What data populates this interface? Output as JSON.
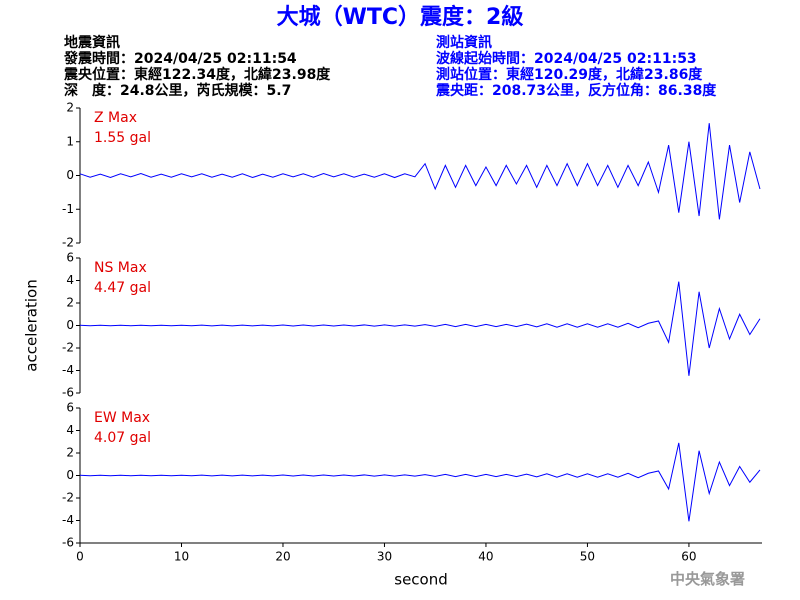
{
  "header": {
    "title": "大城（WTC）震度：2級",
    "left": [
      "地震資訊",
      "發震時間：2024/04/25 02:11:54",
      "震央位置：東經122.34度，北緯23.98度",
      "深　度：24.8公里，芮氏規模：5.7"
    ],
    "right": [
      "測站資訊",
      "波線起始時間：2024/04/25 02:11:53",
      "測站位置：東經120.29度，北緯23.86度",
      "震央距：208.73公里，反方位角：86.38度"
    ]
  },
  "footer": "中央氣象署",
  "chart_data": [
    {
      "type": "line",
      "annotation": [
        "Z Max",
        "1.55 gal"
      ],
      "color": "#0000ff",
      "x": [
        0,
        1,
        2,
        3,
        4,
        5,
        6,
        7,
        8,
        9,
        10,
        11,
        12,
        13,
        14,
        15,
        16,
        17,
        18,
        19,
        20,
        21,
        22,
        23,
        24,
        25,
        26,
        27,
        28,
        29,
        30,
        31,
        32,
        33,
        34,
        35,
        36,
        37,
        38,
        39,
        40,
        41,
        42,
        43,
        44,
        45,
        46,
        47,
        48,
        49,
        50,
        51,
        52,
        53,
        54,
        55,
        56,
        57,
        58,
        59,
        60,
        61,
        62,
        63,
        64,
        65,
        66,
        67
      ],
      "values": [
        0.05,
        -0.05,
        0.04,
        -0.06,
        0.05,
        -0.04,
        0.06,
        -0.05,
        0.04,
        -0.05,
        0.05,
        -0.04,
        0.05,
        -0.05,
        0.04,
        -0.05,
        0.05,
        -0.06,
        0.04,
        -0.05,
        0.05,
        -0.04,
        0.05,
        -0.05,
        0.06,
        -0.04,
        0.05,
        -0.05,
        0.04,
        -0.05,
        0.05,
        -0.06,
        0.05,
        -0.04,
        0.35,
        -0.4,
        0.3,
        -0.35,
        0.3,
        -0.3,
        0.25,
        -0.3,
        0.3,
        -0.25,
        0.3,
        -0.35,
        0.3,
        -0.3,
        0.35,
        -0.3,
        0.35,
        -0.3,
        0.3,
        -0.35,
        0.3,
        -0.3,
        0.4,
        -0.5,
        0.9,
        -1.1,
        1.0,
        -1.2,
        1.55,
        -1.3,
        0.9,
        -0.8,
        0.7,
        -0.4
      ],
      "xlim": [
        0,
        67.2
      ],
      "ylim": [
        -2,
        2
      ],
      "yticks": [
        -2,
        -1,
        0,
        1,
        2
      ]
    },
    {
      "type": "line",
      "annotation": [
        "NS Max",
        "4.47 gal"
      ],
      "color": "#0000ff",
      "ylabel": "acceleration",
      "x": [
        0,
        1,
        2,
        3,
        4,
        5,
        6,
        7,
        8,
        9,
        10,
        11,
        12,
        13,
        14,
        15,
        16,
        17,
        18,
        19,
        20,
        21,
        22,
        23,
        24,
        25,
        26,
        27,
        28,
        29,
        30,
        31,
        32,
        33,
        34,
        35,
        36,
        37,
        38,
        39,
        40,
        41,
        42,
        43,
        44,
        45,
        46,
        47,
        48,
        49,
        50,
        51,
        52,
        53,
        54,
        55,
        56,
        57,
        58,
        59,
        60,
        61,
        62,
        63,
        64,
        65,
        66,
        67
      ],
      "values": [
        0.02,
        -0.02,
        0.02,
        -0.02,
        0.02,
        -0.02,
        0.02,
        -0.02,
        0.02,
        -0.02,
        0.02,
        -0.02,
        0.03,
        -0.03,
        0.03,
        -0.03,
        0.03,
        -0.03,
        0.03,
        -0.03,
        0.04,
        -0.04,
        0.04,
        -0.04,
        0.04,
        -0.04,
        0.04,
        -0.04,
        0.05,
        -0.05,
        0.05,
        -0.05,
        0.05,
        -0.05,
        0.08,
        -0.08,
        0.1,
        -0.1,
        0.1,
        -0.1,
        0.1,
        -0.1,
        0.1,
        -0.1,
        0.12,
        -0.12,
        0.15,
        -0.15,
        0.15,
        -0.15,
        0.15,
        -0.15,
        0.15,
        -0.15,
        0.2,
        -0.2,
        0.2,
        0.4,
        -1.5,
        3.9,
        -4.47,
        3.0,
        -2.0,
        1.5,
        -1.2,
        1.0,
        -0.8,
        0.6
      ],
      "xlim": [
        0,
        67.2
      ],
      "ylim": [
        -6,
        6
      ],
      "yticks": [
        -6,
        -4,
        -2,
        0,
        2,
        4,
        6
      ]
    },
    {
      "type": "line",
      "annotation": [
        "EW Max",
        "4.07 gal"
      ],
      "color": "#0000ff",
      "xlabel": "second",
      "x": [
        0,
        1,
        2,
        3,
        4,
        5,
        6,
        7,
        8,
        9,
        10,
        11,
        12,
        13,
        14,
        15,
        16,
        17,
        18,
        19,
        20,
        21,
        22,
        23,
        24,
        25,
        26,
        27,
        28,
        29,
        30,
        31,
        32,
        33,
        34,
        35,
        36,
        37,
        38,
        39,
        40,
        41,
        42,
        43,
        44,
        45,
        46,
        47,
        48,
        49,
        50,
        51,
        52,
        53,
        54,
        55,
        56,
        57,
        58,
        59,
        60,
        61,
        62,
        63,
        64,
        65,
        66,
        67
      ],
      "values": [
        0.02,
        -0.02,
        0.02,
        -0.02,
        0.02,
        -0.02,
        0.02,
        -0.02,
        0.02,
        -0.02,
        0.02,
        -0.02,
        0.03,
        -0.03,
        0.03,
        -0.03,
        0.03,
        -0.03,
        0.03,
        -0.03,
        0.04,
        -0.04,
        0.04,
        -0.04,
        0.04,
        -0.04,
        0.04,
        -0.04,
        0.05,
        -0.05,
        0.05,
        -0.05,
        0.05,
        -0.05,
        0.08,
        -0.08,
        0.1,
        -0.1,
        0.1,
        -0.1,
        0.1,
        -0.1,
        0.1,
        -0.1,
        0.12,
        -0.12,
        0.15,
        -0.15,
        0.15,
        -0.15,
        0.15,
        -0.15,
        0.15,
        -0.15,
        0.2,
        -0.2,
        0.2,
        0.4,
        -1.2,
        2.9,
        -4.07,
        2.2,
        -1.6,
        1.2,
        -0.9,
        0.8,
        -0.6,
        0.5
      ],
      "xlim": [
        0,
        67.2
      ],
      "xticks": [
        0,
        10,
        20,
        30,
        40,
        50,
        60
      ],
      "ylim": [
        -6,
        6
      ],
      "yticks": [
        -6,
        -4,
        -2,
        0,
        2,
        4,
        6
      ]
    }
  ]
}
